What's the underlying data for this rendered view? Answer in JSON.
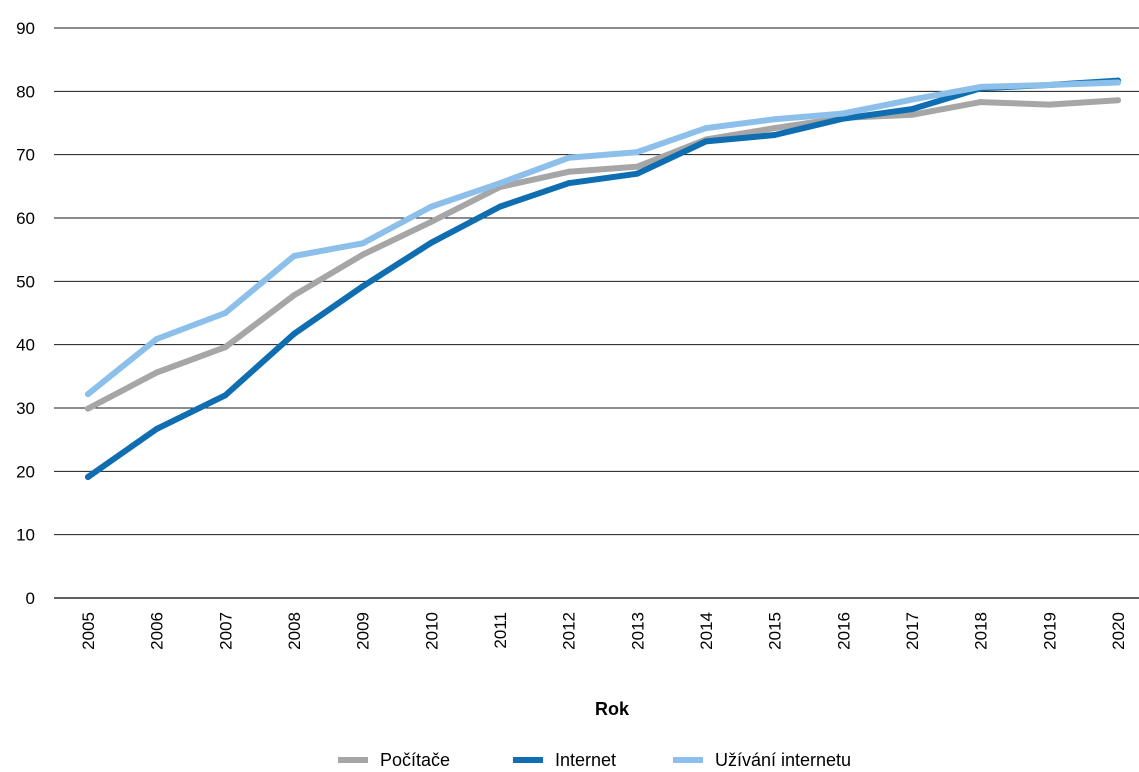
{
  "chart_data": {
    "type": "line",
    "title": "",
    "xlabel": "Rok",
    "ylabel": "",
    "categories": [
      "2005",
      "2006",
      "2007",
      "2008",
      "2009",
      "2010",
      "2011",
      "2012",
      "2013",
      "2014",
      "2015",
      "2016",
      "2017",
      "2018",
      "2019",
      "2020"
    ],
    "ylim": [
      0,
      90
    ],
    "yticks": [
      "0",
      "10",
      "20",
      "30",
      "40",
      "50",
      "60",
      "70",
      "80",
      "90"
    ],
    "grid": true,
    "legend_position": "bottom",
    "series": [
      {
        "name": "Počítače",
        "color": "#a6a6a6",
        "values": [
          29.9,
          35.6,
          39.6,
          47.8,
          54.2,
          59.4,
          64.9,
          67.3,
          68.1,
          72.4,
          74.2,
          75.8,
          76.3,
          78.3,
          77.9,
          78.6
        ]
      },
      {
        "name": "Internet",
        "color": "#0f6db2",
        "values": [
          19.1,
          26.7,
          32.0,
          41.7,
          49.2,
          56.1,
          61.8,
          65.5,
          67.0,
          72.1,
          73.1,
          75.7,
          77.2,
          80.5,
          81.0,
          81.7
        ]
      },
      {
        "name": "Užívání internetu",
        "color": "#8cc0ea",
        "values": [
          32.2,
          40.9,
          45.0,
          54.0,
          56.0,
          61.8,
          65.5,
          69.5,
          70.4,
          74.2,
          75.6,
          76.5,
          78.7,
          80.7,
          81.0,
          81.4
        ]
      }
    ]
  }
}
